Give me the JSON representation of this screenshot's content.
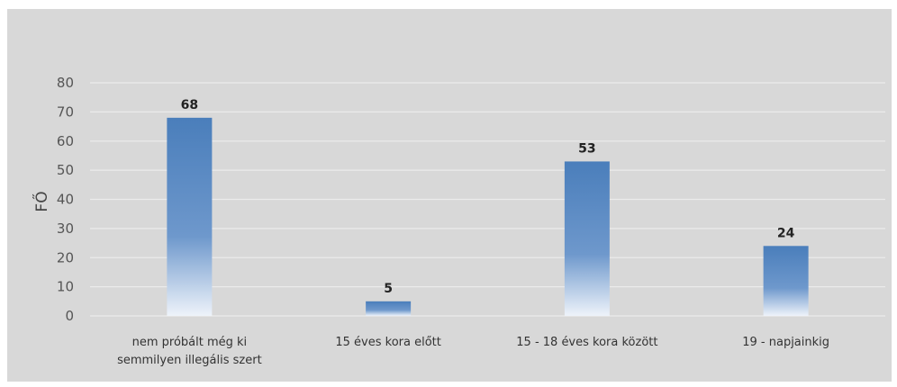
{
  "chart_data": {
    "type": "bar",
    "title": "",
    "xlabel": "",
    "ylabel": "FŐ",
    "ylim": [
      0,
      80
    ],
    "yticks": [
      0,
      10,
      20,
      30,
      40,
      50,
      60,
      70,
      80
    ],
    "grid": true,
    "legend": "none",
    "bar_color": "#4a7ebb",
    "categories": [
      [
        "nem próbált még ki",
        "semmilyen illegális szert"
      ],
      [
        "15 éves kora előtt"
      ],
      [
        "15 - 18 éves kora között"
      ],
      [
        "19 - napjainkig"
      ]
    ],
    "values": [
      68,
      5,
      53,
      24
    ]
  }
}
